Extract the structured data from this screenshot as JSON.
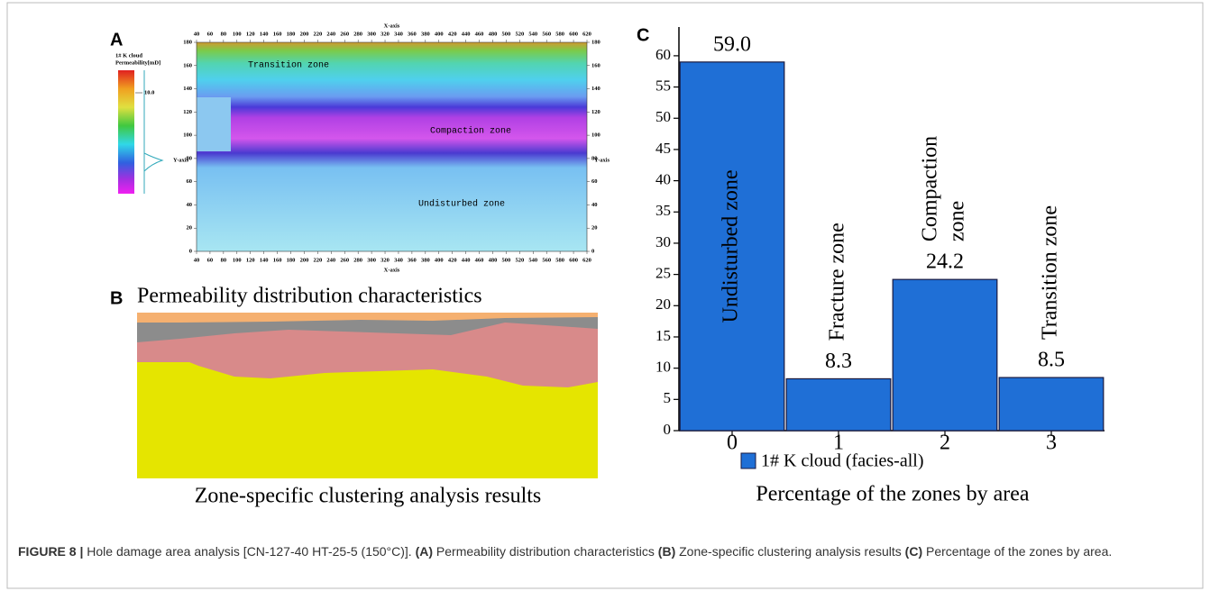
{
  "chart_data": [
    {
      "type": "heatmap",
      "panel": "A",
      "caption": "Permeability distribution characteristics",
      "xlabel": "X-axis",
      "ylabel": "Y-axis",
      "xlim": [
        40,
        620
      ],
      "ylim": [
        0,
        180
      ],
      "xticks": [
        40,
        60,
        80,
        100,
        120,
        140,
        160,
        180,
        200,
        220,
        240,
        260,
        280,
        300,
        320,
        340,
        360,
        380,
        400,
        420,
        440,
        460,
        480,
        500,
        520,
        540,
        560,
        580,
        600,
        620
      ],
      "yticks": [
        0,
        20,
        40,
        60,
        80,
        100,
        120,
        140,
        160,
        180
      ],
      "colorbar_label": [
        "1# K cloud",
        "Permeability[mD]"
      ],
      "colorbar_ticks": [
        {
          "value": 10,
          "label": "10.0"
        }
      ],
      "annotations": [
        "Transition zone",
        "Compaction zone",
        "Undisturbed zone"
      ]
    },
    {
      "type": "bar",
      "panel": "C",
      "xlabel": "Percentage of the zones by area",
      "categories": [
        "0",
        "1",
        "2",
        "3"
      ],
      "series": [
        {
          "name": "1# K cloud (facies-all)",
          "color": "#1f6fd6",
          "values": [
            59.0,
            8.3,
            24.2,
            8.5
          ],
          "value_labels": [
            "59.0",
            "8.3",
            "24.2",
            "8.5"
          ]
        }
      ],
      "bar_labels": [
        [
          "Undisturbed zone"
        ],
        [
          "Fracture zone"
        ],
        [
          "Compaction",
          "zone"
        ],
        [
          "Transition zone"
        ]
      ],
      "ylim": [
        0,
        64.6
      ],
      "yticks": [
        0,
        5,
        10,
        15,
        20,
        25,
        30,
        35,
        40,
        45,
        50,
        55,
        60
      ]
    }
  ],
  "panel_b": {
    "label": "B",
    "caption": "Zone-specific clustering analysis results"
  },
  "figure_caption": [
    {
      "text": "FIGURE 8 | ",
      "bold": true
    },
    {
      "text": "Hole damage area analysis [CN-127-40 HT-25-5 (150°C)]. ",
      "bold": false
    },
    {
      "text": "(A)",
      "bold": true
    },
    {
      "text": " Permeability distribution characteristics ",
      "bold": false
    },
    {
      "text": "(B)",
      "bold": true
    },
    {
      "text": " Zone-specific clustering analysis results ",
      "bold": false
    },
    {
      "text": "(C)",
      "bold": true
    },
    {
      "text": " Percentage of the zones by area.",
      "bold": false
    }
  ]
}
